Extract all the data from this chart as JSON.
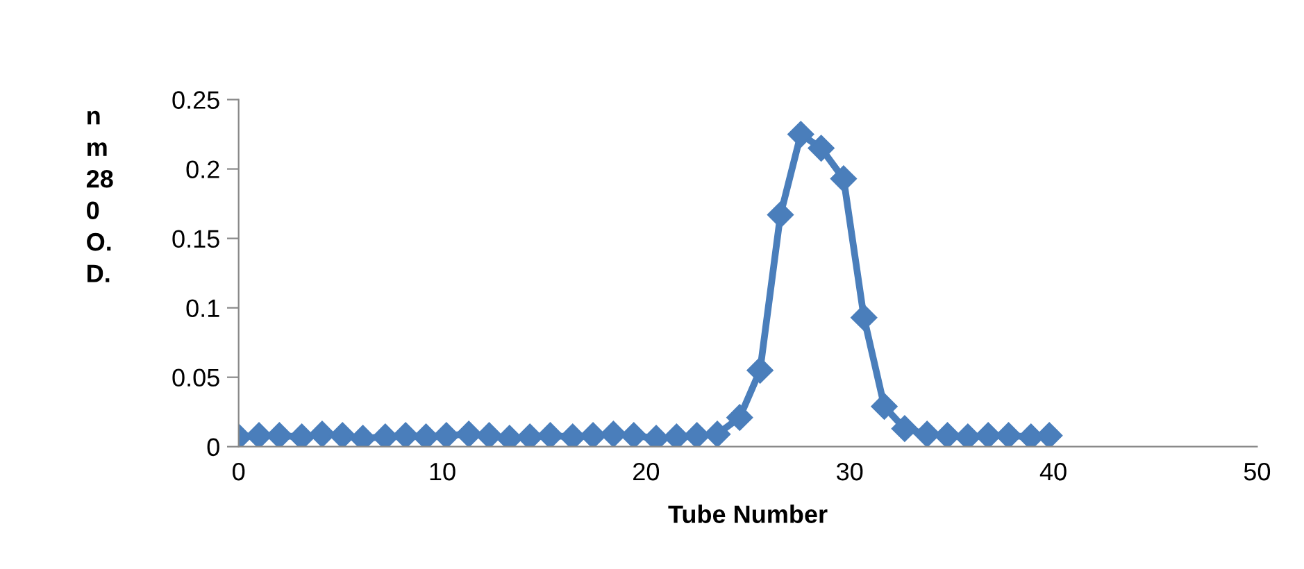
{
  "chart_data": {
    "type": "line",
    "xlabel": "Tube Number",
    "ylabel": "n\nm\n28\n0\nO.\nD.",
    "x": [
      0,
      1,
      2.0,
      3.1,
      4.1,
      5.1,
      6.1,
      7.2,
      8.2,
      9.2,
      10.2,
      11.3,
      12.3,
      13.3,
      14.3,
      15.3,
      16.4,
      17.4,
      18.4,
      19.4,
      20.5,
      21.5,
      22.5,
      23.5,
      24.6,
      25.6,
      26.6,
      27.6,
      28.6,
      29.7,
      30.7,
      31.7,
      32.7,
      33.8,
      34.8,
      35.8,
      36.8,
      37.8,
      38.9,
      39.8
    ],
    "series": [
      {
        "color": "#4a7ebb",
        "values": [
          0.007,
          0.008,
          0.008,
          0.007,
          0.009,
          0.008,
          0.006,
          0.007,
          0.008,
          0.007,
          0.008,
          0.009,
          0.008,
          0.006,
          0.007,
          0.008,
          0.007,
          0.008,
          0.009,
          0.008,
          0.006,
          0.007,
          0.008,
          0.009,
          0.021,
          0.055,
          0.167,
          0.225,
          0.215,
          0.193,
          0.093,
          0.029,
          0.013,
          0.009,
          0.008,
          0.007,
          0.008,
          0.008,
          0.007,
          0.008
        ]
      }
    ],
    "xlim": [
      0,
      50
    ],
    "xticks": [
      0,
      10,
      20,
      30,
      40,
      50
    ],
    "ylim": [
      0,
      0.25
    ],
    "yticks": [
      0,
      0.05,
      0.1,
      0.15,
      0.2,
      0.25
    ],
    "marker": "diamond",
    "line_style": "solid",
    "grid": false,
    "legend": false
  }
}
